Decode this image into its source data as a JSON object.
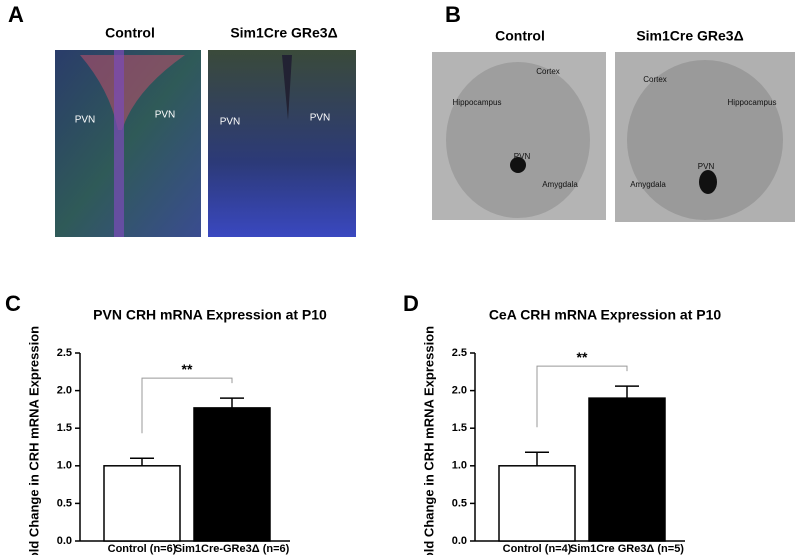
{
  "panels": [
    {
      "label": "A",
      "captions": [
        "Control",
        "Sim1Cre GRe3Δ"
      ],
      "image_labels": [
        [
          "PVN",
          "PVN"
        ],
        [
          "PVN",
          "PVN"
        ]
      ]
    },
    {
      "label": "B",
      "captions": [
        "Control",
        "Sim1Cre GRe3Δ"
      ],
      "image_labels": [
        [
          "Cortex",
          "Hippocampus",
          "PVN",
          "Amygdala"
        ],
        [
          "Cortex",
          "Hippocampus",
          "PVN",
          "Amygdala"
        ]
      ]
    }
  ],
  "chart_data": [
    {
      "type": "bar",
      "panel_label": "C",
      "title": "PVN CRH mRNA Expression at P10",
      "y_label": "Fold Change in CRH mRNA Expression",
      "categories": [
        "Control (n=6)",
        "Sim1Cre-GRe3Δ (n=6)"
      ],
      "values": [
        1.0,
        1.77
      ],
      "errors": [
        0.1,
        0.13
      ],
      "colors": [
        "#ffffff",
        "#000000"
      ],
      "ylim": [
        0,
        2.5
      ],
      "yticks": [
        {
          "value": 0,
          "label": "0.0"
        },
        {
          "value": 0.5,
          "label": "0.5"
        },
        {
          "value": 1,
          "label": "1.0"
        },
        {
          "value": 1.5,
          "label": "1.5"
        },
        {
          "value": 2,
          "label": "2.0"
        },
        {
          "value": 2.5,
          "label": "2.5"
        }
      ],
      "annotation": "**"
    },
    {
      "type": "bar",
      "panel_label": "D",
      "title": "CeA CRH mRNA Expression at P10",
      "y_label": "Fold Change in CRH mRNA Expression",
      "categories": [
        "Control (n=4)",
        "Sim1Cre GRe3Δ (n=5)"
      ],
      "values": [
        1.0,
        1.9
      ],
      "errors": [
        0.18,
        0.16
      ],
      "colors": [
        "#ffffff",
        "#000000"
      ],
      "ylim": [
        0,
        2.5
      ],
      "yticks": [
        {
          "value": 0,
          "label": "0.0"
        },
        {
          "value": 0.5,
          "label": "0.5"
        },
        {
          "value": 1,
          "label": "1.0"
        },
        {
          "value": 1.5,
          "label": "1.5"
        },
        {
          "value": 2,
          "label": "2.0"
        },
        {
          "value": 2.5,
          "label": "2.5"
        }
      ],
      "annotation": "**"
    }
  ]
}
